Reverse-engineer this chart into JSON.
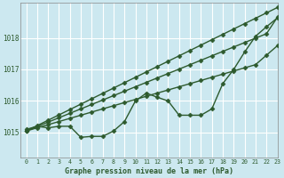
{
  "title": "Graphe pression niveau de la mer (hPa)",
  "bg_color": "#cce8f0",
  "grid_color": "#b8d8e0",
  "line_color": "#2d5a2d",
  "xlim": [
    -0.5,
    23
  ],
  "ylim": [
    1014.2,
    1019.1
  ],
  "yticks": [
    1015,
    1016,
    1017,
    1018
  ],
  "xtick_labels": [
    "0",
    "1",
    "2",
    "3",
    "4",
    "5",
    "6",
    "7",
    "8",
    "9",
    "10",
    "11",
    "12",
    "13",
    "14",
    "15",
    "16",
    "17",
    "18",
    "19",
    "20",
    "21",
    "22",
    "23"
  ],
  "xticks": [
    0,
    1,
    2,
    3,
    4,
    5,
    6,
    7,
    8,
    9,
    10,
    11,
    12,
    13,
    14,
    15,
    16,
    17,
    18,
    19,
    20,
    21,
    22,
    23
  ],
  "series": [
    {
      "name": "line1_straight",
      "y": [
        1015.05,
        1015.19,
        1015.33,
        1015.47,
        1015.61,
        1015.75,
        1015.89,
        1016.03,
        1016.17,
        1016.31,
        1016.45,
        1016.59,
        1016.73,
        1016.87,
        1017.01,
        1017.15,
        1017.29,
        1017.43,
        1017.57,
        1017.71,
        1017.85,
        1017.99,
        1018.13,
        1018.65
      ],
      "marker": "D",
      "markersize": 2.5,
      "linewidth": 1.0
    },
    {
      "name": "line2_straight",
      "y": [
        1015.05,
        1015.22,
        1015.39,
        1015.56,
        1015.73,
        1015.9,
        1016.07,
        1016.24,
        1016.41,
        1016.58,
        1016.75,
        1016.92,
        1017.09,
        1017.26,
        1017.43,
        1017.6,
        1017.77,
        1017.94,
        1018.11,
        1018.28,
        1018.45,
        1018.62,
        1018.79,
        1018.96
      ],
      "marker": "D",
      "markersize": 2.5,
      "linewidth": 1.0
    },
    {
      "name": "line3_straight",
      "y": [
        1015.05,
        1015.15,
        1015.25,
        1015.35,
        1015.45,
        1015.55,
        1015.65,
        1015.75,
        1015.85,
        1015.95,
        1016.05,
        1016.15,
        1016.25,
        1016.35,
        1016.45,
        1016.55,
        1016.65,
        1016.75,
        1016.85,
        1016.95,
        1017.05,
        1017.15,
        1017.45,
        1017.75
      ],
      "marker": "D",
      "markersize": 2.5,
      "linewidth": 1.0
    },
    {
      "name": "line4_wavy",
      "y": [
        1015.1,
        1015.2,
        1015.15,
        1015.2,
        1015.2,
        1014.85,
        1014.88,
        1014.88,
        1015.05,
        1015.35,
        1016.0,
        1016.25,
        1016.12,
        1016.0,
        1015.55,
        1015.55,
        1015.55,
        1015.75,
        1016.55,
        1017.0,
        1017.55,
        1018.05,
        1018.35,
        1018.63
      ],
      "marker": "D",
      "markersize": 2.5,
      "linewidth": 1.0
    }
  ]
}
